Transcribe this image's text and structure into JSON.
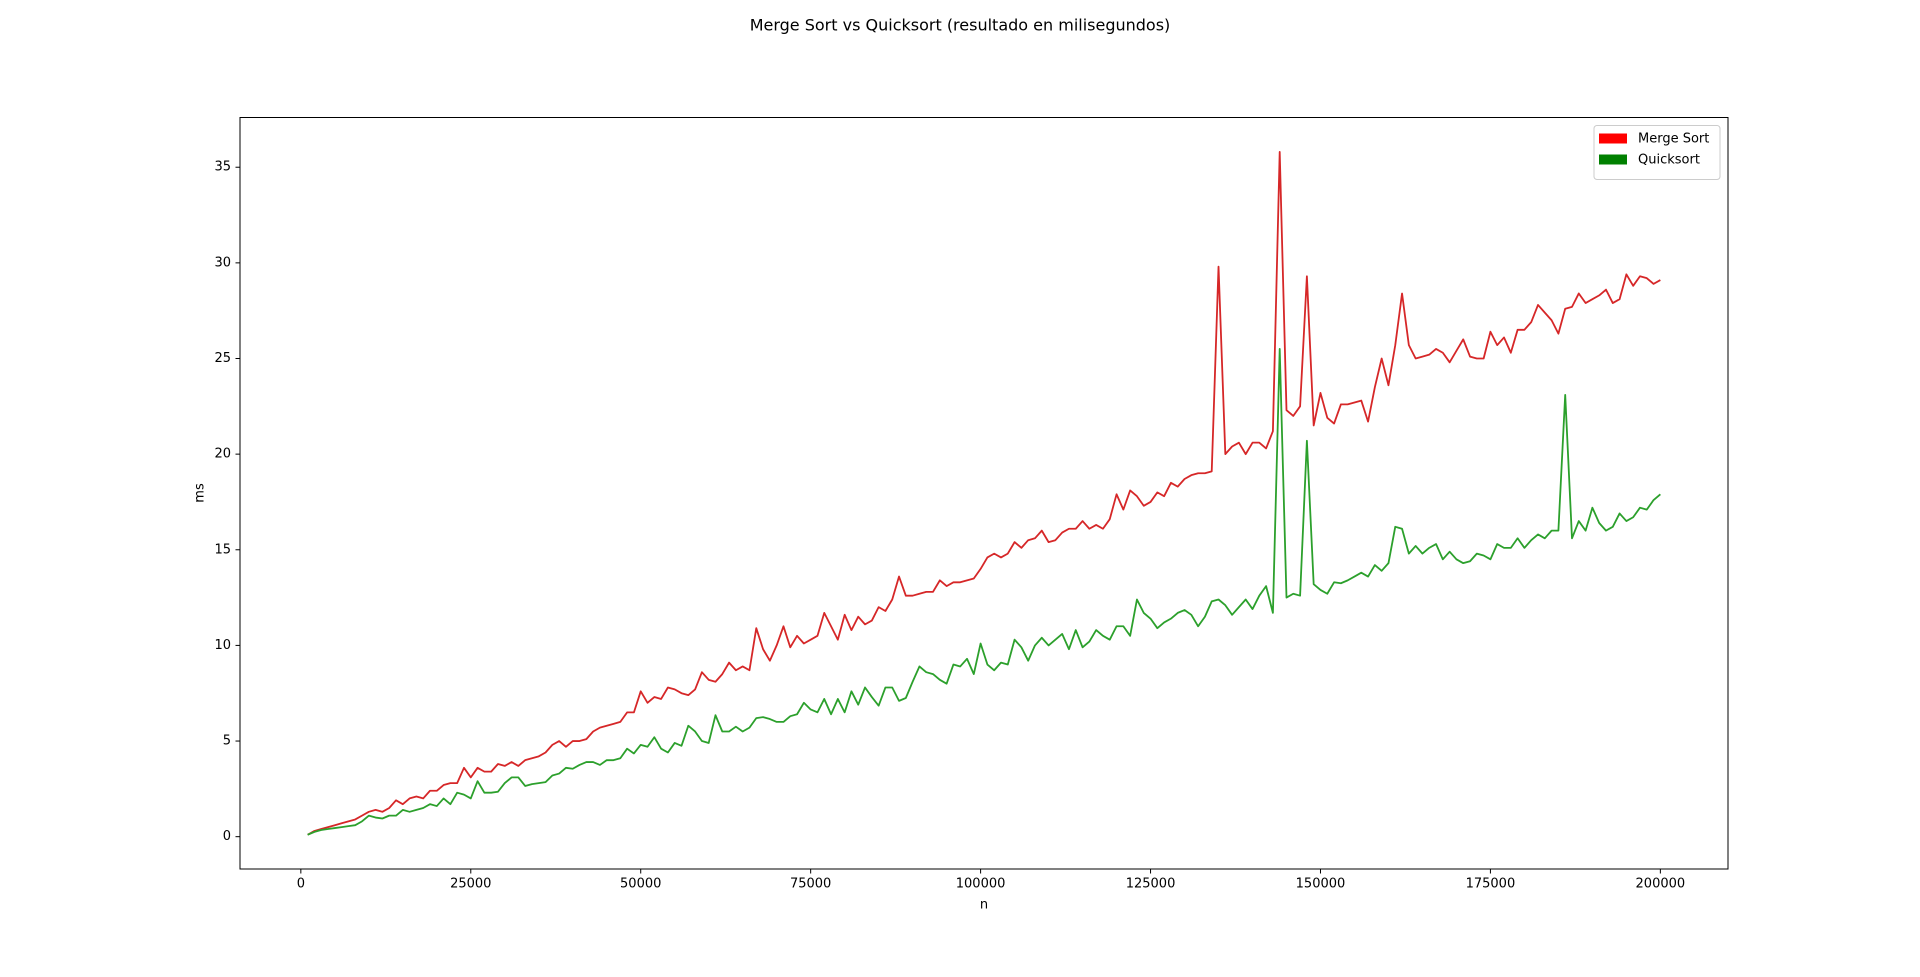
{
  "chart_data": {
    "type": "line",
    "title": "Merge Sort vs Quicksort (resultado en milisegundos)",
    "xlabel": "n",
    "ylabel": "ms",
    "xlim": [
      -8950,
      209950
    ],
    "ylim": [
      -1.69,
      37.6
    ],
    "xticks": [
      0,
      25000,
      50000,
      75000,
      100000,
      125000,
      150000,
      175000,
      200000
    ],
    "yticks": [
      0,
      5,
      10,
      15,
      20,
      25,
      30,
      35
    ],
    "grid": false,
    "legend": "upper right",
    "x": [
      1000,
      2000,
      3000,
      4000,
      5000,
      6000,
      7000,
      8000,
      9000,
      10000,
      11000,
      12000,
      13000,
      14000,
      15000,
      16000,
      17000,
      18000,
      19000,
      20000,
      21000,
      22000,
      23000,
      24000,
      25000,
      26000,
      27000,
      28000,
      29000,
      30000,
      31000,
      32000,
      33000,
      34000,
      35000,
      36000,
      37000,
      38000,
      39000,
      40000,
      41000,
      42000,
      43000,
      44000,
      45000,
      46000,
      47000,
      48000,
      49000,
      50000,
      51000,
      52000,
      53000,
      54000,
      55000,
      56000,
      57000,
      58000,
      59000,
      60000,
      61000,
      62000,
      63000,
      64000,
      65000,
      66000,
      67000,
      68000,
      69000,
      70000,
      71000,
      72000,
      73000,
      74000,
      75000,
      76000,
      77000,
      78000,
      79000,
      80000,
      81000,
      82000,
      83000,
      84000,
      85000,
      86000,
      87000,
      88000,
      89000,
      90000,
      91000,
      92000,
      93000,
      94000,
      95000,
      96000,
      97000,
      98000,
      99000,
      100000,
      101000,
      102000,
      103000,
      104000,
      105000,
      106000,
      107000,
      108000,
      109000,
      110000,
      111000,
      112000,
      113000,
      114000,
      115000,
      116000,
      117000,
      118000,
      119000,
      120000,
      121000,
      122000,
      123000,
      124000,
      125000,
      126000,
      127000,
      128000,
      129000,
      130000,
      131000,
      132000,
      133000,
      134000,
      135000,
      136000,
      137000,
      138000,
      139000,
      140000,
      141000,
      142000,
      143000,
      144000,
      145000,
      146000,
      147000,
      148000,
      149000,
      150000,
      151000,
      152000,
      153000,
      154000,
      155000,
      156000,
      157000,
      158000,
      159000,
      160000,
      161000,
      162000,
      163000,
      164000,
      165000,
      166000,
      167000,
      168000,
      169000,
      170000,
      171000,
      172000,
      173000,
      174000,
      175000,
      176000,
      177000,
      178000,
      179000,
      180000,
      181000,
      182000,
      183000,
      184000,
      185000,
      186000,
      187000,
      188000,
      189000,
      190000,
      191000,
      192000,
      193000,
      194000,
      195000,
      196000,
      197000,
      198000,
      199000,
      200000
    ],
    "series": [
      {
        "name": "Merge Sort",
        "color": "#d62728",
        "legend_color": "#ff0000",
        "values": [
          0.1,
          0.3,
          0.4,
          0.5,
          0.6,
          0.7,
          0.8,
          0.9,
          1.1,
          1.3,
          1.4,
          1.3,
          1.5,
          1.9,
          1.7,
          2.0,
          2.1,
          2.0,
          2.4,
          2.4,
          2.7,
          2.8,
          2.8,
          3.6,
          3.1,
          3.6,
          3.4,
          3.4,
          3.8,
          3.7,
          3.9,
          3.7,
          4.0,
          4.1,
          4.2,
          4.4,
          4.8,
          5.0,
          4.7,
          5.0,
          5.0,
          5.1,
          5.5,
          5.7,
          5.8,
          5.9,
          6.0,
          6.5,
          6.5,
          7.6,
          7.0,
          7.3,
          7.2,
          7.8,
          7.7,
          7.5,
          7.4,
          7.7,
          8.6,
          8.2,
          8.1,
          8.5,
          9.1,
          8.7,
          8.9,
          8.7,
          10.9,
          9.8,
          9.2,
          10.0,
          11.0,
          9.9,
          10.5,
          10.1,
          10.3,
          10.5,
          11.7,
          11.0,
          10.3,
          11.6,
          10.8,
          11.5,
          11.1,
          11.3,
          12.0,
          11.8,
          12.4,
          13.6,
          12.6,
          12.6,
          12.7,
          12.8,
          12.8,
          13.4,
          13.1,
          13.3,
          13.3,
          13.4,
          13.5,
          14.0,
          14.6,
          14.8,
          14.6,
          14.8,
          15.4,
          15.1,
          15.5,
          15.6,
          16.0,
          15.4,
          15.5,
          15.9,
          16.1,
          16.1,
          16.5,
          16.1,
          16.3,
          16.1,
          16.6,
          17.9,
          17.1,
          18.1,
          17.8,
          17.3,
          17.5,
          18.0,
          17.8,
          18.5,
          18.3,
          18.7,
          18.9,
          19.0,
          19.0,
          19.1,
          29.8,
          20.0,
          20.4,
          20.6,
          20.0,
          20.6,
          20.6,
          20.3,
          21.2,
          35.8,
          22.3,
          22.0,
          22.5,
          29.3,
          21.5,
          23.2,
          21.9,
          21.6,
          22.6,
          22.6,
          22.7,
          22.8,
          21.7,
          23.5,
          25.0,
          23.6,
          25.7,
          28.4,
          25.7,
          25.0,
          25.1,
          25.2,
          25.5,
          25.3,
          24.8,
          25.4,
          26.0,
          25.1,
          25.0,
          25.0,
          26.4,
          25.7,
          26.1,
          25.3,
          26.5,
          26.5,
          26.9,
          27.8,
          27.4,
          27.0,
          26.3,
          27.6,
          27.7,
          28.4,
          27.9,
          28.1,
          28.3,
          28.6,
          27.9,
          28.1,
          29.4,
          28.8,
          29.3,
          29.2,
          28.9,
          29.1
        ]
      },
      {
        "name": "Quicksort",
        "color": "#2ca02c",
        "legend_color": "#008000",
        "values": [
          0.1,
          0.25,
          0.35,
          0.4,
          0.45,
          0.5,
          0.55,
          0.6,
          0.8,
          1.1,
          1.0,
          0.95,
          1.1,
          1.1,
          1.4,
          1.3,
          1.4,
          1.5,
          1.7,
          1.6,
          2.0,
          1.7,
          2.3,
          2.2,
          2.0,
          2.9,
          2.3,
          2.3,
          2.35,
          2.8,
          3.1,
          3.1,
          2.65,
          2.75,
          2.8,
          2.85,
          3.2,
          3.3,
          3.6,
          3.55,
          3.75,
          3.9,
          3.9,
          3.75,
          4.0,
          4.0,
          4.1,
          4.6,
          4.35,
          4.8,
          4.7,
          5.2,
          4.6,
          4.4,
          4.9,
          4.75,
          5.8,
          5.5,
          5.0,
          4.9,
          6.35,
          5.5,
          5.5,
          5.75,
          5.5,
          5.7,
          6.2,
          6.25,
          6.15,
          6.0,
          6.0,
          6.3,
          6.4,
          7.0,
          6.65,
          6.5,
          7.2,
          6.4,
          7.2,
          6.5,
          7.6,
          6.9,
          7.8,
          7.3,
          6.85,
          7.8,
          7.8,
          7.1,
          7.25,
          8.1,
          8.9,
          8.6,
          8.5,
          8.2,
          8.0,
          9.0,
          8.9,
          9.3,
          8.5,
          10.1,
          9.0,
          8.7,
          9.1,
          9.0,
          10.3,
          9.9,
          9.2,
          10.0,
          10.4,
          10.0,
          10.3,
          10.6,
          9.8,
          10.8,
          9.9,
          10.2,
          10.8,
          10.5,
          10.3,
          11.0,
          11.0,
          10.5,
          12.4,
          11.7,
          11.4,
          10.9,
          11.2,
          11.4,
          11.7,
          11.85,
          11.6,
          11.0,
          11.5,
          12.3,
          12.4,
          12.1,
          11.6,
          12.0,
          12.4,
          11.9,
          12.6,
          13.1,
          11.7,
          25.5,
          12.5,
          12.7,
          12.6,
          20.7,
          13.2,
          12.9,
          12.7,
          13.3,
          13.25,
          13.4,
          13.6,
          13.8,
          13.6,
          14.2,
          13.9,
          14.3,
          16.2,
          16.1,
          14.8,
          15.2,
          14.8,
          15.1,
          15.3,
          14.5,
          14.9,
          14.5,
          14.3,
          14.4,
          14.8,
          14.7,
          14.5,
          15.3,
          15.1,
          15.1,
          15.6,
          15.1,
          15.5,
          15.8,
          15.6,
          16.0,
          16.0,
          23.1,
          15.6,
          16.5,
          16.0,
          17.2,
          16.4,
          16.0,
          16.2,
          16.9,
          16.5,
          16.7,
          17.2,
          17.1,
          17.6,
          17.9
        ]
      }
    ]
  }
}
